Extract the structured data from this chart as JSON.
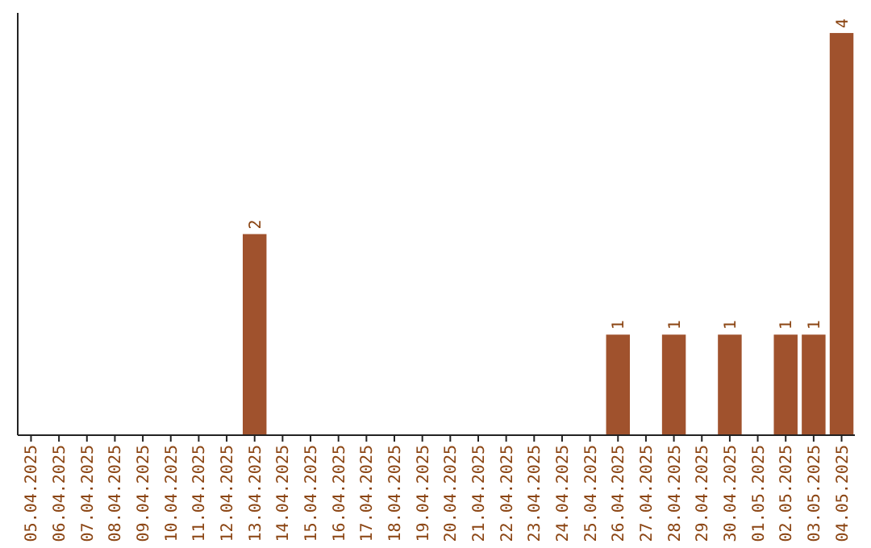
{
  "chart_data": {
    "type": "bar",
    "categories": [
      "05.04.2025",
      "06.04.2025",
      "07.04.2025",
      "08.04.2025",
      "09.04.2025",
      "10.04.2025",
      "11.04.2025",
      "12.04.2025",
      "13.04.2025",
      "14.04.2025",
      "15.04.2025",
      "16.04.2025",
      "17.04.2025",
      "18.04.2025",
      "19.04.2025",
      "20.04.2025",
      "21.04.2025",
      "22.04.2025",
      "23.04.2025",
      "24.04.2025",
      "25.04.2025",
      "26.04.2025",
      "27.04.2025",
      "28.04.2025",
      "29.04.2025",
      "30.04.2025",
      "01.05.2025",
      "02.05.2025",
      "03.05.2025",
      "04.05.2025"
    ],
    "values": [
      0,
      0,
      0,
      0,
      0,
      0,
      0,
      0,
      2,
      0,
      0,
      0,
      0,
      0,
      0,
      0,
      0,
      0,
      0,
      0,
      0,
      1,
      0,
      1,
      0,
      1,
      0,
      1,
      1,
      4
    ],
    "value_labels": [
      null,
      null,
      null,
      null,
      null,
      null,
      null,
      null,
      "2",
      null,
      null,
      null,
      null,
      null,
      null,
      null,
      null,
      null,
      null,
      null,
      null,
      "1",
      null,
      "1",
      null,
      "1",
      null,
      "1",
      "1",
      "4"
    ],
    "color": "#a0522d"
  }
}
